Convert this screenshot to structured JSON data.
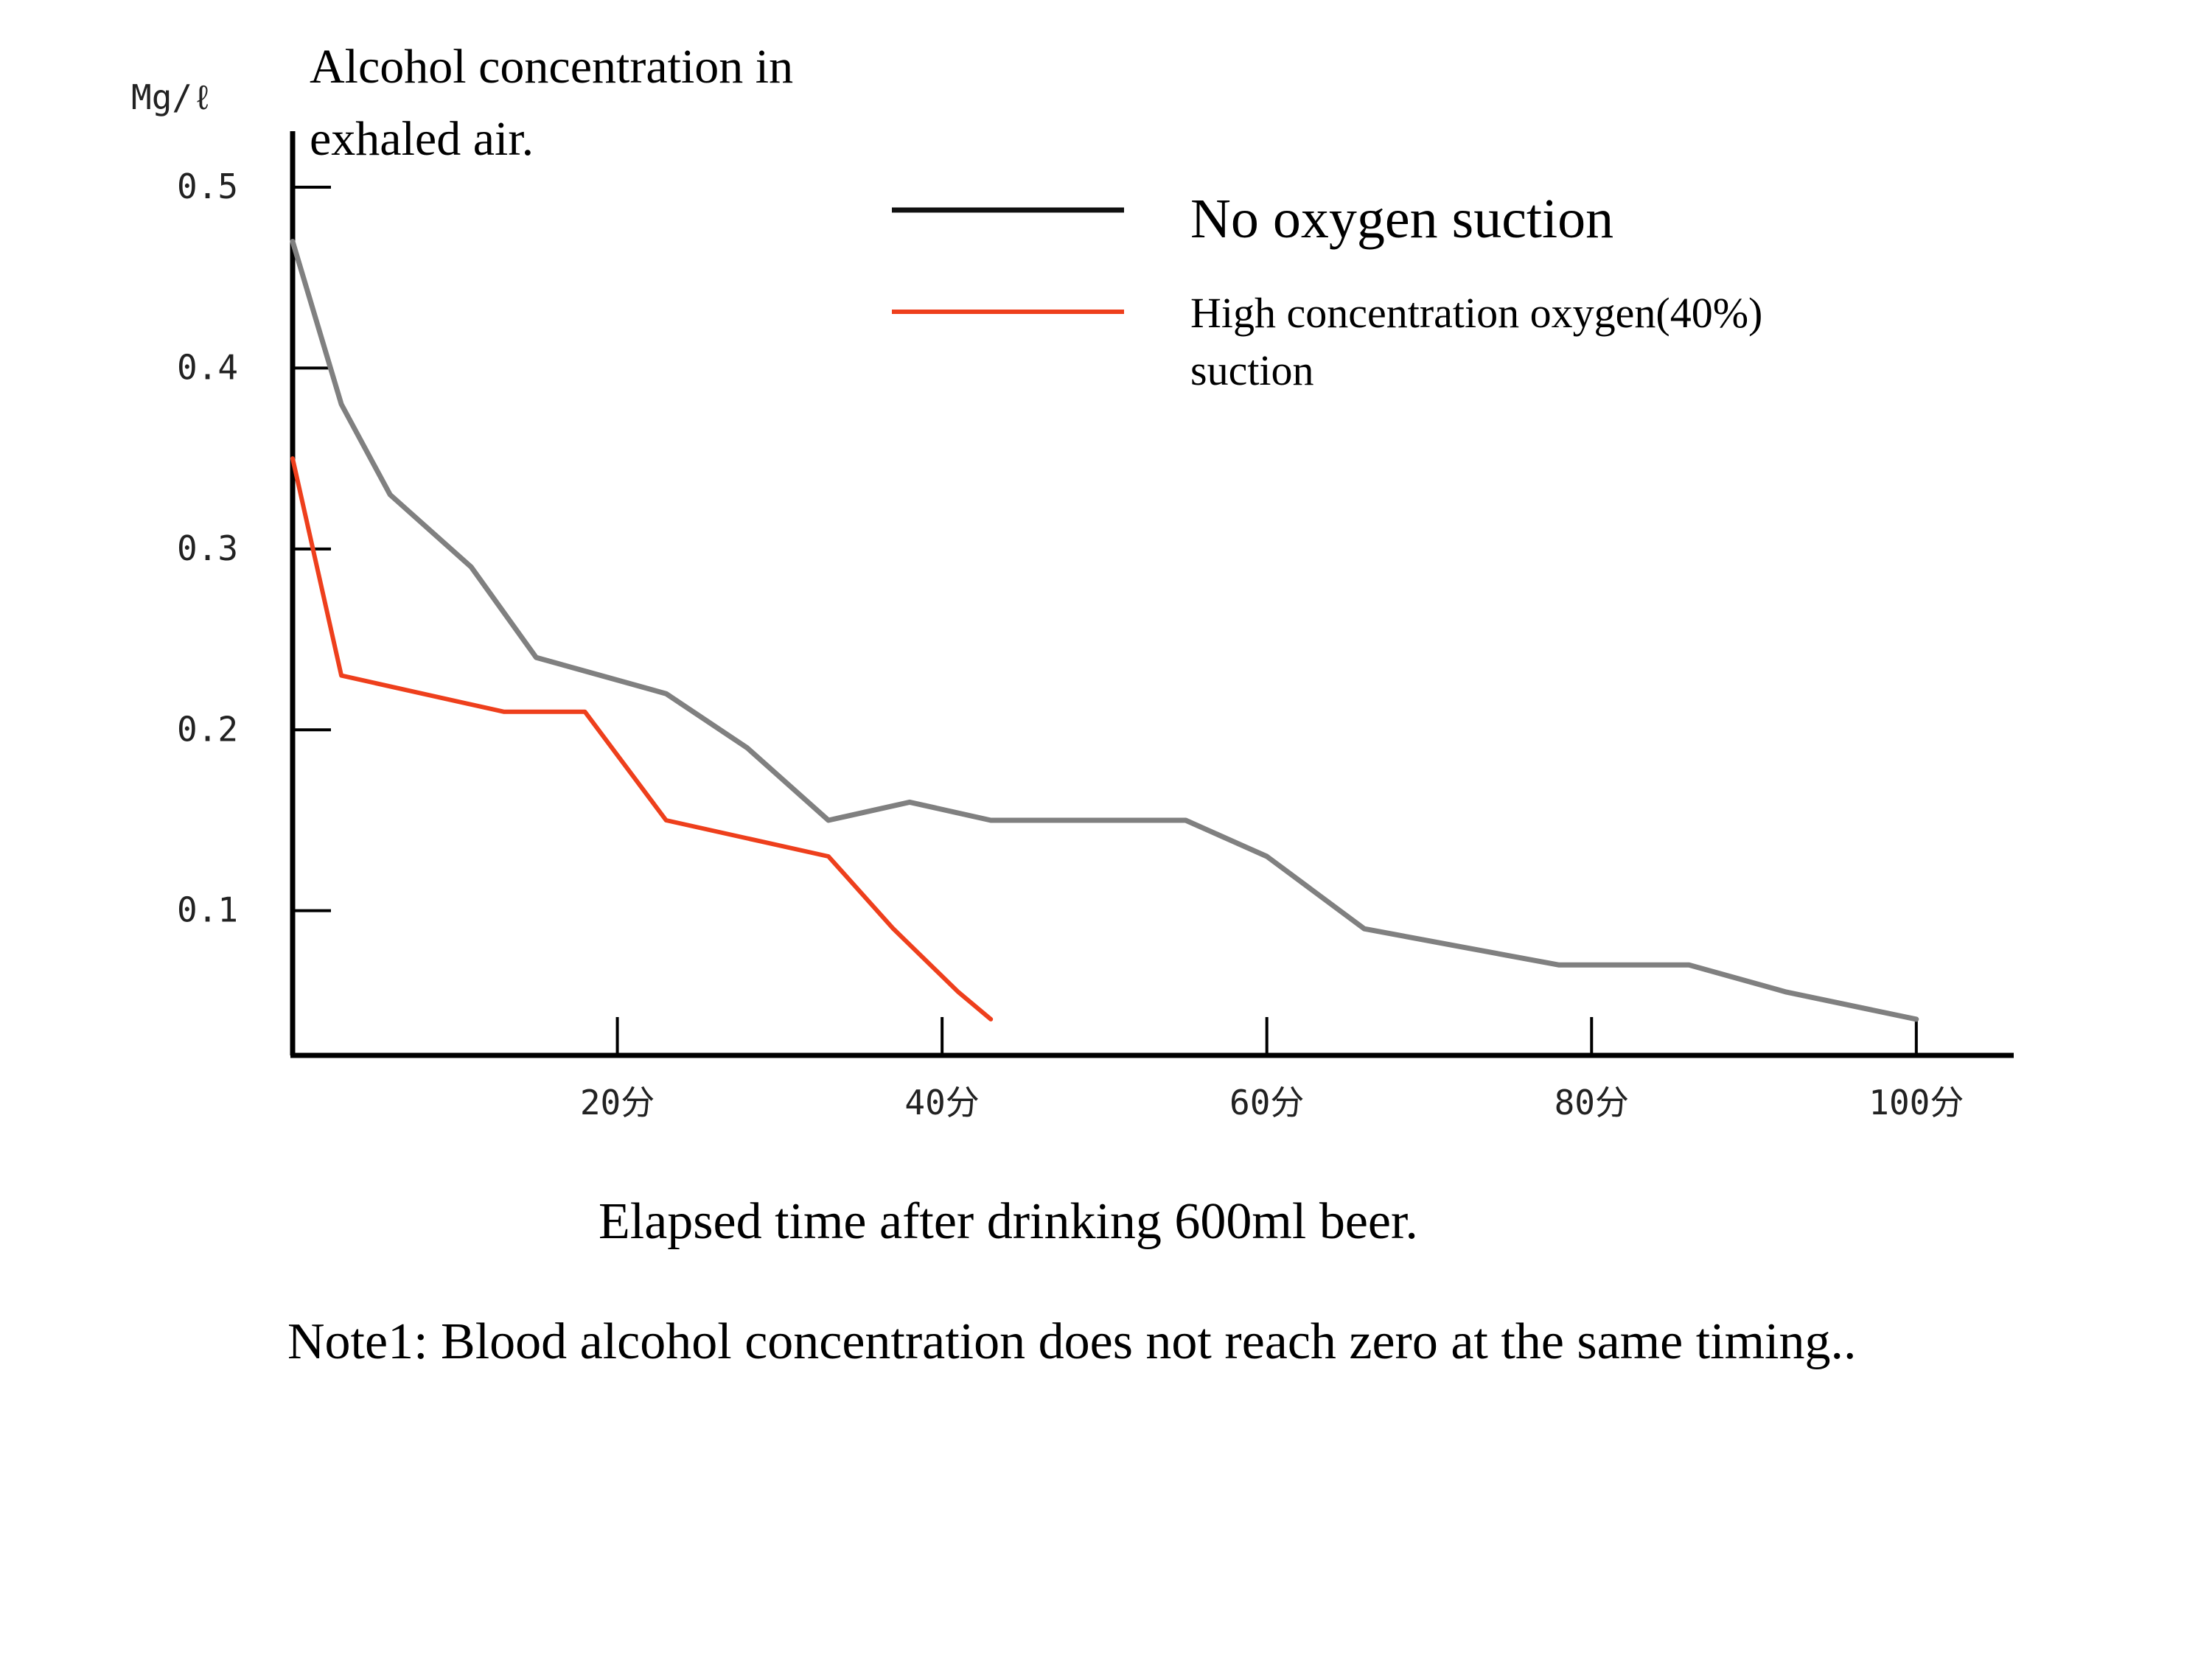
{
  "chart_data": {
    "type": "line",
    "title": "Alcohol concentration in exhaled air.",
    "ylabel": "Mg/ℓ",
    "xlabel": "Elapsed time after drinking 600ml beer.",
    "note": "Note1: Blood alcohol concentration does not reach zero at the same timing..",
    "xlim": [
      0,
      106
    ],
    "ylim": [
      0.02,
      0.5
    ],
    "x_ticks": [
      {
        "value": 20,
        "label": "20分"
      },
      {
        "value": 40,
        "label": "40分"
      },
      {
        "value": 60,
        "label": "60分"
      },
      {
        "value": 80,
        "label": "80分"
      },
      {
        "value": 100,
        "label": "100分"
      }
    ],
    "y_ticks": [
      {
        "value": 0.1,
        "label": "0.1"
      },
      {
        "value": 0.2,
        "label": "0.2"
      },
      {
        "value": 0.3,
        "label": "0.3"
      },
      {
        "value": 0.4,
        "label": "0.4"
      },
      {
        "value": 0.5,
        "label": "0.5"
      }
    ],
    "grid": false,
    "legend": "top-right",
    "series": [
      {
        "name": "No oxygen suction",
        "color": "#808080",
        "legend_color": "#111111",
        "points": [
          [
            0,
            0.47
          ],
          [
            3,
            0.38
          ],
          [
            6,
            0.33
          ],
          [
            11,
            0.29
          ],
          [
            15,
            0.24
          ],
          [
            19,
            0.23
          ],
          [
            23,
            0.22
          ],
          [
            28,
            0.19
          ],
          [
            33,
            0.15
          ],
          [
            38,
            0.16
          ],
          [
            43,
            0.15
          ],
          [
            55,
            0.15
          ],
          [
            60,
            0.13
          ],
          [
            66,
            0.09
          ],
          [
            72,
            0.08
          ],
          [
            78,
            0.07
          ],
          [
            86,
            0.07
          ],
          [
            92,
            0.055
          ],
          [
            100,
            0.04
          ]
        ]
      },
      {
        "name": "High concentration oxygen(40%)\nsuction",
        "name_lines": [
          "High concentration oxygen(40%)",
          "suction"
        ],
        "color": "#ee3f1c",
        "legend_color": "#ee3f1c",
        "points": [
          [
            0,
            0.35
          ],
          [
            3,
            0.23
          ],
          [
            8,
            0.22
          ],
          [
            13,
            0.21
          ],
          [
            18,
            0.21
          ],
          [
            23,
            0.15
          ],
          [
            28,
            0.14
          ],
          [
            33,
            0.13
          ],
          [
            37,
            0.09
          ],
          [
            41,
            0.055
          ],
          [
            43,
            0.04
          ]
        ]
      }
    ]
  }
}
